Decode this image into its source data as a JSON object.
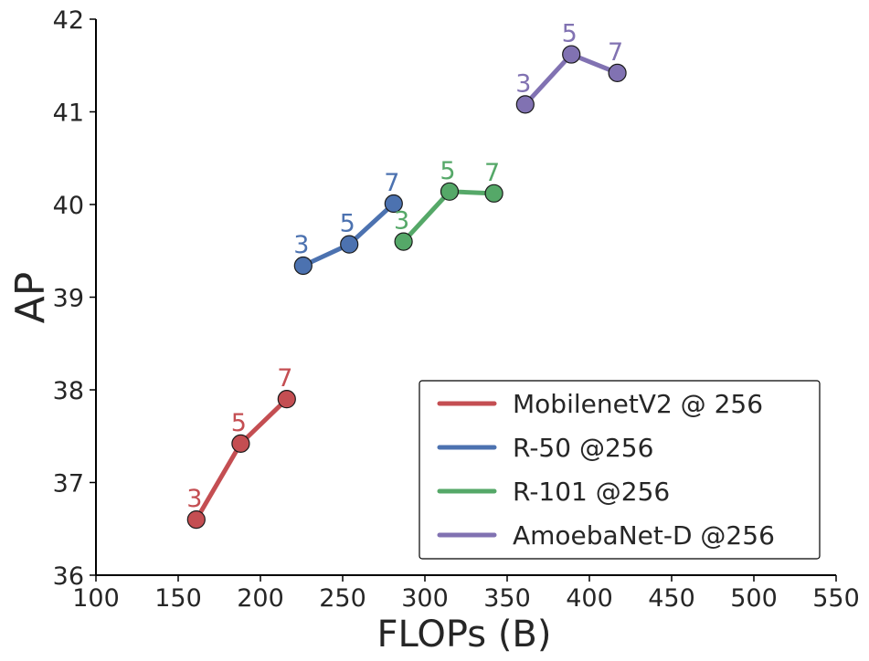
{
  "chart_data": {
    "type": "line",
    "title": "",
    "xlabel": "FLOPs (B)",
    "ylabel": "AP",
    "xlim": [
      100,
      550
    ],
    "ylim": [
      36,
      42
    ],
    "xticks": [
      "100",
      "150",
      "200",
      "250",
      "300",
      "350",
      "400",
      "450",
      "500",
      "550"
    ],
    "yticks": [
      "36",
      "37",
      "38",
      "39",
      "40",
      "41",
      "42"
    ],
    "grid": false,
    "legend_position": "bottom-right",
    "series": [
      {
        "name": "MobilenetV2 @ 256",
        "color": "#c44e52",
        "points": [
          {
            "x": 161,
            "y": 36.6,
            "label": "3"
          },
          {
            "x": 188,
            "y": 37.42,
            "label": "5"
          },
          {
            "x": 216,
            "y": 37.9,
            "label": "7"
          }
        ]
      },
      {
        "name": "R-50 @256",
        "color": "#4c72b0",
        "points": [
          {
            "x": 226,
            "y": 39.34,
            "label": "3"
          },
          {
            "x": 254,
            "y": 39.57,
            "label": "5"
          },
          {
            "x": 281,
            "y": 40.01,
            "label": "7"
          }
        ]
      },
      {
        "name": "R-101 @256",
        "color": "#55a868",
        "points": [
          {
            "x": 287,
            "y": 39.6,
            "label": "3"
          },
          {
            "x": 315,
            "y": 40.14,
            "label": "5"
          },
          {
            "x": 342,
            "y": 40.12,
            "label": "7"
          }
        ]
      },
      {
        "name": "AmoebaNet-D @256",
        "color": "#8172b2",
        "points": [
          {
            "x": 361,
            "y": 41.08,
            "label": "3"
          },
          {
            "x": 389,
            "y": 41.62,
            "label": "5"
          },
          {
            "x": 417,
            "y": 41.42,
            "label": "7"
          }
        ]
      }
    ]
  }
}
